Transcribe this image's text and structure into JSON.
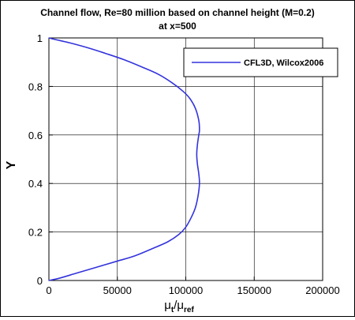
{
  "chart_data": {
    "type": "line",
    "title": "Channel flow, Re=80 million based on channel height (M=0.2)",
    "subtitle": "at x=500",
    "xlabel": {
      "base": "μ",
      "sub1": "t",
      "slash": "/μ",
      "sub2": "ref"
    },
    "ylabel": "Y",
    "xlim": [
      0,
      200000
    ],
    "ylim": [
      0,
      1
    ],
    "xticks": [
      0,
      50000,
      100000,
      150000,
      200000
    ],
    "yticks": [
      0,
      0.2,
      0.4,
      0.6,
      0.8,
      1
    ],
    "grid": true,
    "legend_position": "top-right",
    "series": [
      {
        "name": "CFL3D, Wilcox2006",
        "color": "#3333dd",
        "points": [
          [
            0,
            0.0
          ],
          [
            8000,
            0.01
          ],
          [
            20000,
            0.03
          ],
          [
            35000,
            0.055
          ],
          [
            50000,
            0.08
          ],
          [
            62000,
            0.1
          ],
          [
            75000,
            0.13
          ],
          [
            87000,
            0.16
          ],
          [
            95000,
            0.19
          ],
          [
            100000,
            0.22
          ],
          [
            104000,
            0.26
          ],
          [
            107000,
            0.3
          ],
          [
            109000,
            0.35
          ],
          [
            110000,
            0.4
          ],
          [
            109500,
            0.44
          ],
          [
            108500,
            0.48
          ],
          [
            108000,
            0.52
          ],
          [
            108500,
            0.56
          ],
          [
            109500,
            0.6
          ],
          [
            110000,
            0.62
          ],
          [
            109500,
            0.66
          ],
          [
            107000,
            0.71
          ],
          [
            103000,
            0.75
          ],
          [
            98000,
            0.78
          ],
          [
            90000,
            0.815
          ],
          [
            80000,
            0.85
          ],
          [
            68000,
            0.88
          ],
          [
            55000,
            0.91
          ],
          [
            42000,
            0.935
          ],
          [
            28000,
            0.96
          ],
          [
            15000,
            0.98
          ],
          [
            5000,
            0.993
          ],
          [
            0,
            1.0
          ]
        ]
      }
    ]
  }
}
